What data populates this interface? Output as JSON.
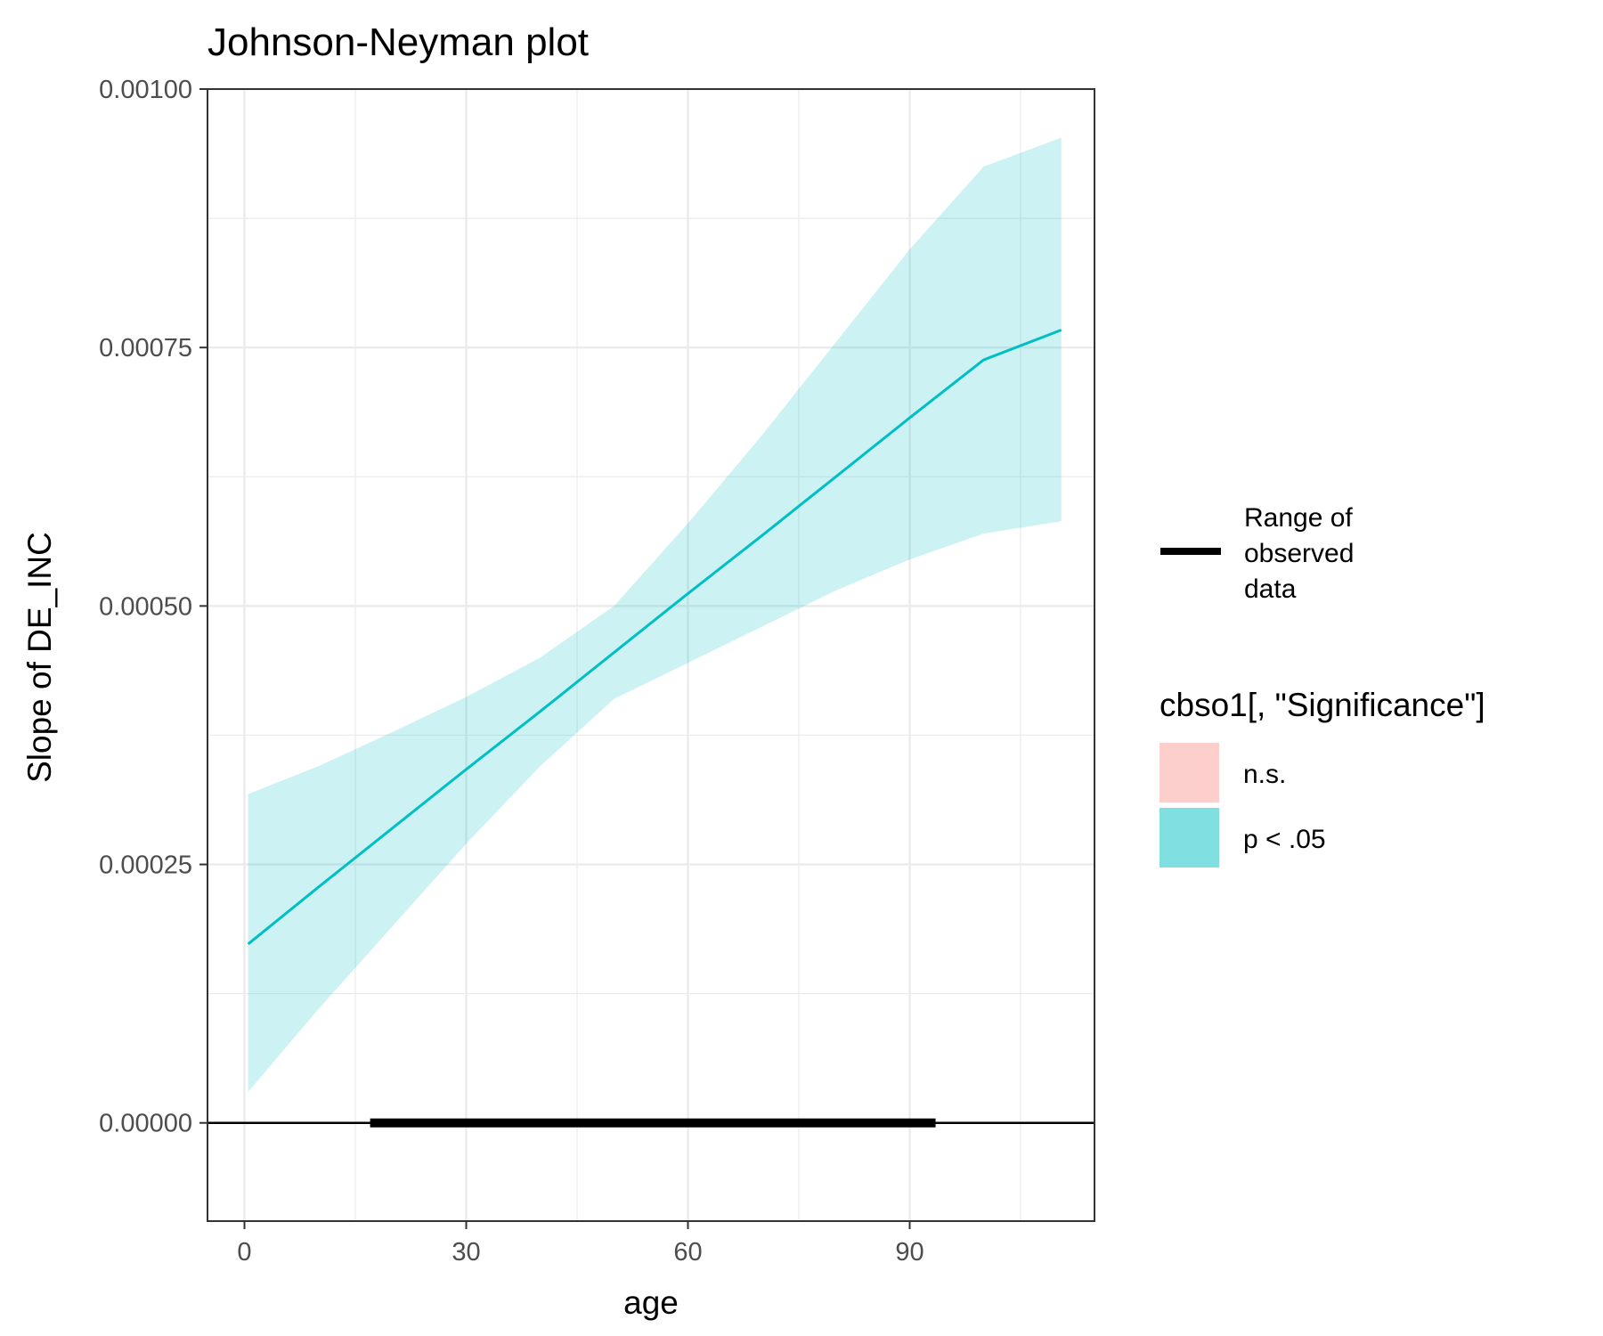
{
  "chart_data": {
    "type": "line",
    "title": "Johnson-Neyman plot",
    "xlabel": "age",
    "ylabel": "Slope of DE_INC",
    "xlim": [
      -5,
      115
    ],
    "ylim": [
      -9.5e-05,
      0.001
    ],
    "x_ticks": [
      0,
      30,
      60,
      90
    ],
    "x_tick_labels": [
      "0",
      "30",
      "60",
      "90"
    ],
    "y_ticks": [
      0.0,
      0.00025,
      0.0005,
      0.00075,
      0.001
    ],
    "y_tick_labels": [
      "0.00000",
      "0.00025",
      "0.00050",
      "0.00075",
      "0.00100"
    ],
    "grid": true,
    "x": [
      0.5,
      10,
      20,
      30,
      40,
      50,
      60,
      70,
      80,
      90,
      100,
      110.5
    ],
    "series": [
      {
        "values": [
          0.000173,
          0.000228,
          0.000285,
          0.000342,
          0.000398,
          0.000455,
          0.000512,
          0.000568,
          0.000625,
          0.000682,
          0.000738,
          0.000767
        ],
        "lower": [
          3e-05,
          0.00011,
          0.00019,
          0.00027,
          0.000345,
          0.00041,
          0.000445,
          0.00048,
          0.000515,
          0.000545,
          0.00057,
          0.000582
        ],
        "upper": [
          0.000318,
          0.000345,
          0.000378,
          0.000412,
          0.00045,
          0.0005,
          0.00058,
          0.000665,
          0.000755,
          0.000845,
          0.000925,
          0.000953
        ],
        "color": "#00BFC4",
        "fill_color": "#00BFC4"
      }
    ],
    "reference_line_y": 0,
    "observed_range": [
      17,
      93.5
    ],
    "legend": {
      "position": "right",
      "range_label": "Range of observed data",
      "range_label_lines": [
        "Range of",
        "observed",
        "data"
      ],
      "significance_title": "cbso1[, \"Significance\"]",
      "items": [
        {
          "label": "n.s.",
          "color": "#F8766D"
        },
        {
          "label": "p < .05",
          "color": "#00BFC4"
        }
      ]
    }
  }
}
